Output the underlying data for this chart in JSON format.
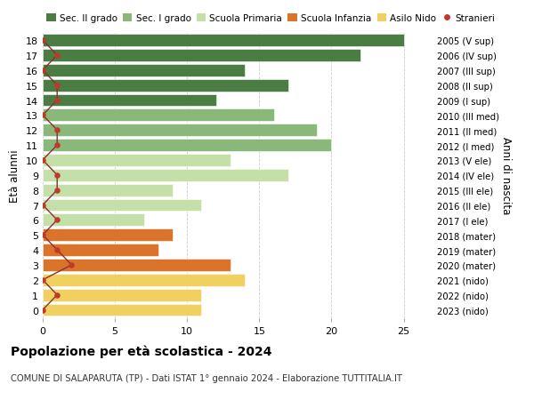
{
  "ages": [
    18,
    17,
    16,
    15,
    14,
    13,
    12,
    11,
    10,
    9,
    8,
    7,
    6,
    5,
    4,
    3,
    2,
    1,
    0
  ],
  "right_labels": [
    "2005 (V sup)",
    "2006 (IV sup)",
    "2007 (III sup)",
    "2008 (II sup)",
    "2009 (I sup)",
    "2010 (III med)",
    "2011 (II med)",
    "2012 (I med)",
    "2013 (V ele)",
    "2014 (IV ele)",
    "2015 (III ele)",
    "2016 (II ele)",
    "2017 (I ele)",
    "2018 (mater)",
    "2019 (mater)",
    "2020 (mater)",
    "2021 (nido)",
    "2022 (nido)",
    "2023 (nido)"
  ],
  "bar_values": [
    25,
    22,
    14,
    17,
    12,
    16,
    19,
    20,
    13,
    17,
    9,
    11,
    7,
    9,
    8,
    13,
    14,
    11,
    11
  ],
  "bar_colors": [
    "#4a7c44",
    "#4a7c44",
    "#4a7c44",
    "#4a7c44",
    "#4a7c44",
    "#8ab87a",
    "#8ab87a",
    "#8ab87a",
    "#c5dfa8",
    "#c5dfa8",
    "#c5dfa8",
    "#c5dfa8",
    "#c5dfa8",
    "#d9742a",
    "#d9742a",
    "#d9742a",
    "#f0d060",
    "#f0d060",
    "#f0d060"
  ],
  "stranieri_values": [
    0,
    1,
    0,
    1,
    1,
    0,
    1,
    1,
    0,
    1,
    1,
    0,
    1,
    0,
    1,
    2,
    0,
    1,
    0
  ],
  "stranieri_color": "#c0392b",
  "stranieri_line_color": "#8b3030",
  "title": "Popolazione per età scolastica - 2024",
  "subtitle": "COMUNE DI SALAPARUTA (TP) - Dati ISTAT 1° gennaio 2024 - Elaborazione TUTTITALIA.IT",
  "ylabel": "Età alunni",
  "right_ylabel": "Anni di nascita",
  "xlim": [
    0,
    27
  ],
  "xticks": [
    0,
    5,
    10,
    15,
    20,
    25
  ],
  "legend_labels": [
    "Sec. II grado",
    "Sec. I grado",
    "Scuola Primaria",
    "Scuola Infanzia",
    "Asilo Nido",
    "Stranieri"
  ],
  "legend_colors": [
    "#4a7c44",
    "#8ab87a",
    "#c5dfa8",
    "#d9742a",
    "#f0d060",
    "#c0392b"
  ],
  "background_color": "#ffffff",
  "grid_color": "#cccccc"
}
